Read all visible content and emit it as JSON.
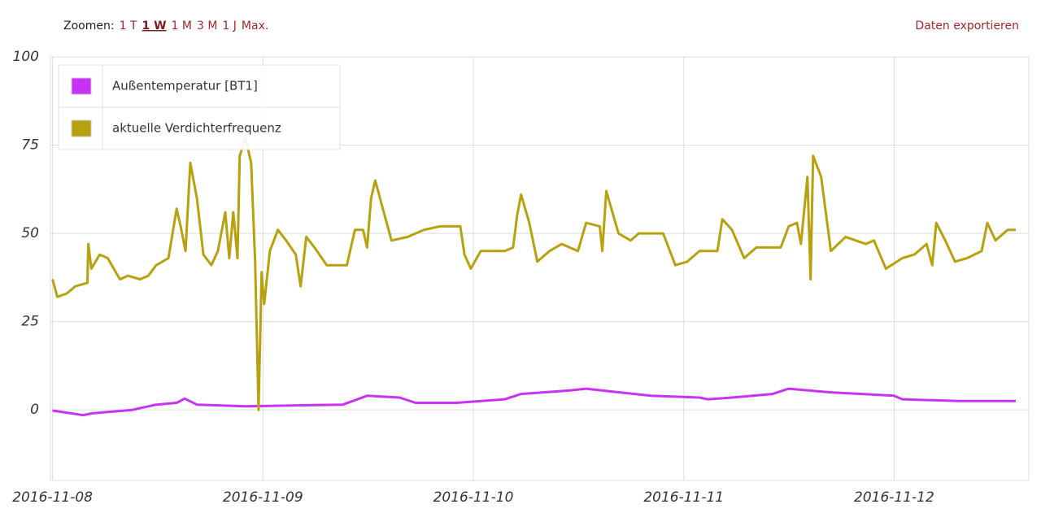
{
  "toolbar": {
    "label": "Zoomen:",
    "options": [
      "1 T",
      "1 W",
      "1 M",
      "3 M",
      "1 J",
      "Max."
    ],
    "selected_index": 1,
    "export": "Daten exportieren"
  },
  "chart_data": {
    "type": "line",
    "xlim": [
      7.99,
      12.64
    ],
    "xticks": [
      {
        "value": 8,
        "label": "2016-11-08"
      },
      {
        "value": 9,
        "label": "2016-11-09"
      },
      {
        "value": 10,
        "label": "2016-11-10"
      },
      {
        "value": 11,
        "label": "2016-11-11"
      },
      {
        "value": 12,
        "label": "2016-11-12"
      }
    ],
    "ylim": [
      -20,
      100
    ],
    "yticks": [
      0,
      25,
      50,
      75,
      100
    ],
    "grid": true,
    "legend": "top-left",
    "series": [
      {
        "name": "Außentemperatur [BT1]",
        "color": "#c832f5",
        "x": [
          8.0,
          8.146,
          8.185,
          8.378,
          8.493,
          8.59,
          8.628,
          8.686,
          8.917,
          9.38,
          9.495,
          9.649,
          9.726,
          9.919,
          10.15,
          10.227,
          10.459,
          10.536,
          10.69,
          10.844,
          11.075,
          11.114,
          11.229,
          11.422,
          11.499,
          11.692,
          12.0,
          12.039,
          12.308,
          12.578
        ],
        "values": [
          -0.2,
          -1.5,
          -1,
          0,
          1.5,
          2,
          3.2,
          1.5,
          1,
          1.5,
          4,
          3.5,
          2,
          2,
          3,
          4.5,
          5.5,
          6,
          5,
          4,
          3.5,
          3,
          3.5,
          4.5,
          6,
          5,
          4,
          3,
          2.5,
          2.5
        ]
      },
      {
        "name": "aktuelle Verdichterfrequenz",
        "color": "#b8a10f",
        "x": [
          8.0,
          8.023,
          8.069,
          8.108,
          8.166,
          8.17,
          8.185,
          8.224,
          8.262,
          8.32,
          8.358,
          8.416,
          8.455,
          8.493,
          8.551,
          8.59,
          8.609,
          8.632,
          8.655,
          8.686,
          8.717,
          8.755,
          8.786,
          8.821,
          8.84,
          8.859,
          8.879,
          8.89,
          8.917,
          8.944,
          8.963,
          8.979,
          8.994,
          9.006,
          9.033,
          9.071,
          9.11,
          9.156,
          9.179,
          9.206,
          9.245,
          9.303,
          9.399,
          9.437,
          9.476,
          9.495,
          9.514,
          9.534,
          9.565,
          9.611,
          9.688,
          9.765,
          9.842,
          9.938,
          9.958,
          9.988,
          10.035,
          10.15,
          10.189,
          10.208,
          10.227,
          10.266,
          10.304,
          10.362,
          10.42,
          10.497,
          10.536,
          10.601,
          10.613,
          10.632,
          10.69,
          10.748,
          10.786,
          10.902,
          10.96,
          11.017,
          11.075,
          11.16,
          11.183,
          11.229,
          11.287,
          11.345,
          11.461,
          11.499,
          11.538,
          11.557,
          11.588,
          11.603,
          11.615,
          11.653,
          11.699,
          11.769,
          11.865,
          11.904,
          11.961,
          12.039,
          12.096,
          12.154,
          12.181,
          12.2,
          12.243,
          12.289,
          12.347,
          12.416,
          12.443,
          12.482,
          12.539,
          12.578
        ],
        "values": [
          37,
          32,
          33,
          35,
          36,
          47,
          40,
          44,
          43,
          37,
          38,
          37,
          38,
          41,
          43,
          57,
          52,
          45,
          70,
          60,
          44,
          41,
          45,
          56,
          43,
          56,
          43,
          72,
          77,
          70,
          42,
          0,
          39,
          30,
          45,
          51,
          48,
          44,
          35,
          49,
          46,
          41,
          41,
          51,
          51,
          46,
          60,
          65,
          58,
          48,
          49,
          51,
          52,
          52,
          44,
          40,
          45,
          45,
          46,
          55,
          61,
          53,
          42,
          45,
          47,
          45,
          53,
          52,
          45,
          62,
          50,
          48,
          50,
          50,
          41,
          42,
          45,
          45,
          54,
          51,
          43,
          46,
          46,
          52,
          53,
          47,
          66,
          37,
          72,
          66,
          45,
          49,
          47,
          48,
          40,
          43,
          44,
          47,
          41,
          53,
          48,
          42,
          43,
          45,
          53,
          48,
          51,
          51
        ]
      }
    ]
  }
}
